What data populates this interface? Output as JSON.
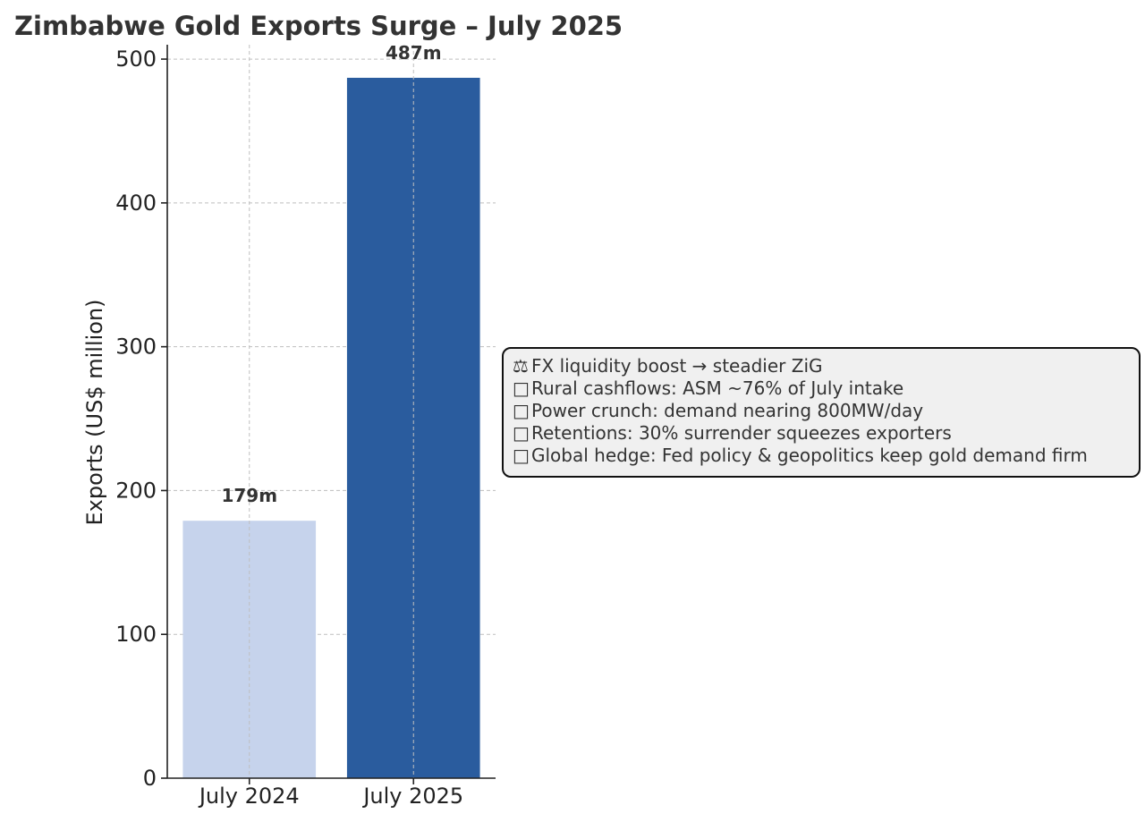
{
  "chart_data": {
    "type": "bar",
    "title": "Zimbabwe Gold Exports Surge – July 2025",
    "xlabel": "",
    "ylabel": "Exports (US$ million)",
    "categories": [
      "July 2024",
      "July 2025"
    ],
    "values": [
      179,
      487
    ],
    "data_labels": [
      "179m",
      "487m"
    ],
    "bar_colors": [
      "#c6d3ec",
      "#2a5c9e"
    ],
    "ylim": [
      0,
      510
    ],
    "yticks": [
      0,
      100,
      200,
      300,
      400,
      500
    ],
    "ytick_labels": [
      "0",
      "100",
      "200",
      "300",
      "400",
      "500"
    ],
    "grid": true
  },
  "annotation": {
    "lines": [
      {
        "icon": "⚖",
        "icon_name": "scales-icon",
        "text": "FX liquidity boost → steadier ZiG"
      },
      {
        "icon": "□",
        "icon_name": "missing-glyph-icon",
        "text": "Rural cashflows: ASM ~76% of July intake"
      },
      {
        "icon": "□",
        "icon_name": "missing-glyph-icon",
        "text": "Power crunch: demand nearing 800MW/day"
      },
      {
        "icon": "□",
        "icon_name": "missing-glyph-icon",
        "text": "Retentions: 30% surrender squeezes exporters"
      },
      {
        "icon": "□",
        "icon_name": "missing-glyph-icon",
        "text": "Global hedge: Fed policy & geopolitics keep gold demand firm"
      }
    ]
  }
}
